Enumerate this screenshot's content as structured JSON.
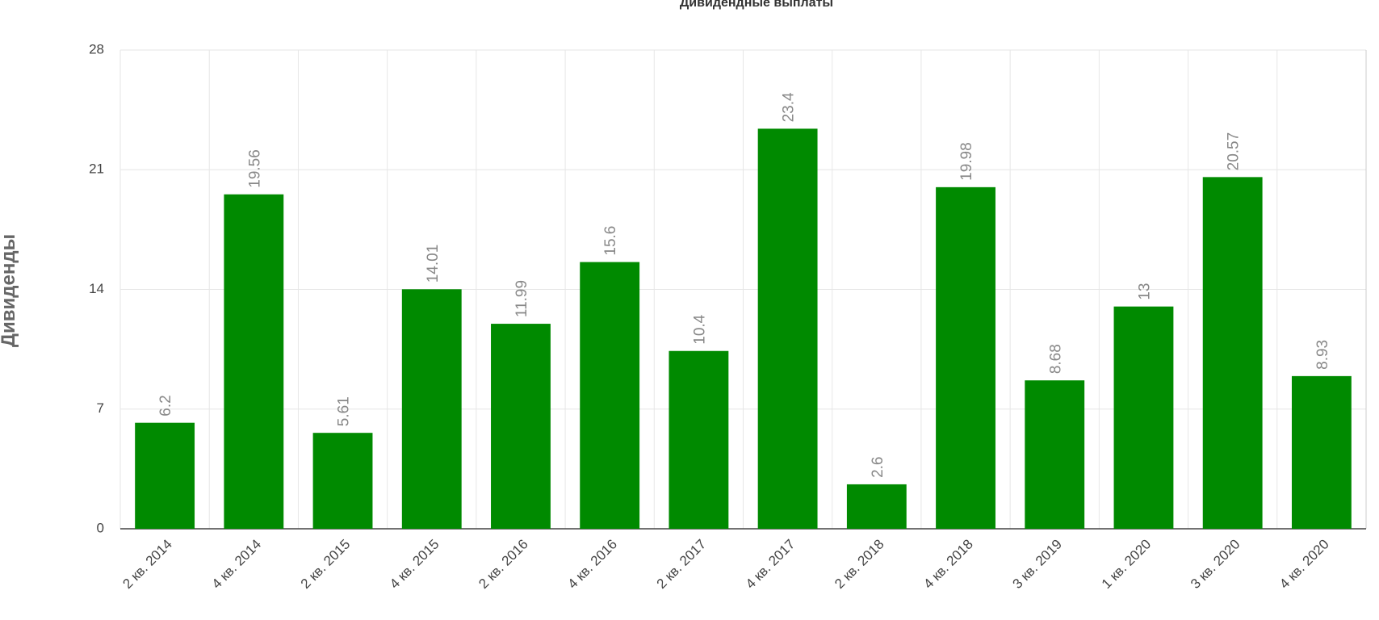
{
  "chart_data": {
    "type": "bar",
    "title": "Дивидендные выплаты",
    "y_label": "Дивиденды",
    "categories": [
      "2 кв. 2014",
      "4 кв. 2014",
      "2 кв. 2015",
      "4 кв. 2015",
      "2 кв. 2016",
      "4 кв. 2016",
      "2 кв. 2017",
      "4 кв. 2017",
      "2 кв. 2018",
      "4 кв. 2018",
      "3 кв. 2019",
      "1 кв. 2020",
      "3 кв. 2020",
      "4 кв. 2020"
    ],
    "values": [
      6.2,
      19.56,
      5.61,
      14.01,
      11.99,
      15.6,
      10.4,
      23.4,
      2.6,
      19.98,
      8.68,
      13,
      20.57,
      8.93
    ],
    "color": "#008a00",
    "ylim": [
      0,
      28
    ],
    "yticks": [
      0,
      7,
      14,
      21,
      28
    ],
    "grid": true
  }
}
